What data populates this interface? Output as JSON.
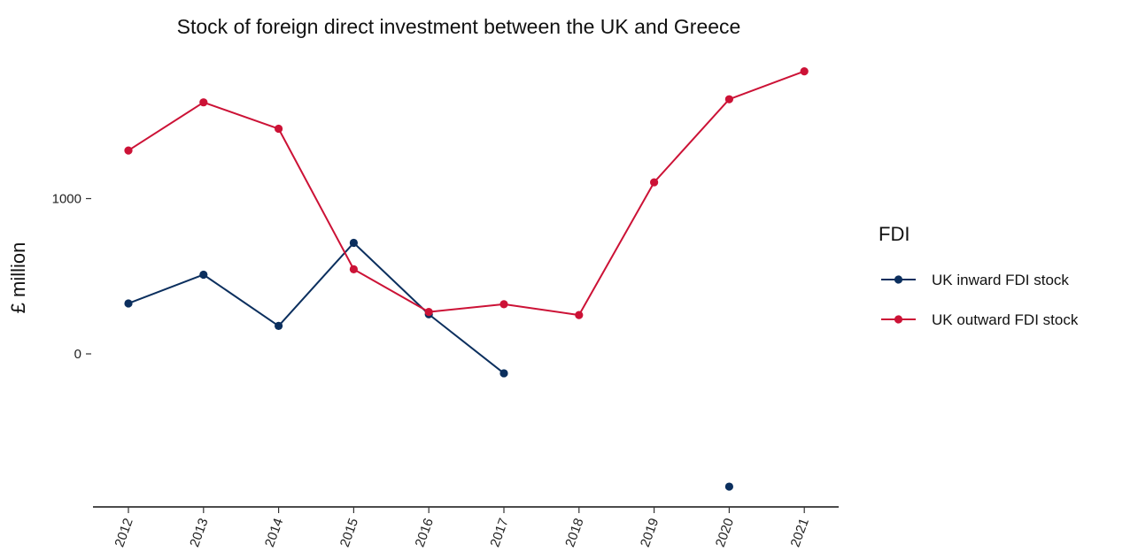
{
  "chart_data": {
    "type": "line",
    "title": "Stock of foreign direct investment between the UK and Greece",
    "xlabel": "",
    "ylabel": "£ million",
    "categories": [
      "2012",
      "2013",
      "2014",
      "2015",
      "2016",
      "2017",
      "2018",
      "2019",
      "2020",
      "2021"
    ],
    "y_ticks": [
      0,
      1000
    ],
    "y_tick_labels": [
      "0",
      "1000"
    ],
    "ylim": [
      -980,
      1850
    ],
    "grid": false,
    "legend": {
      "title": "FDI",
      "position": "right"
    },
    "series": [
      {
        "name": "UK inward FDI stock",
        "color": "#0b2f5e",
        "values": [
          325,
          510,
          180,
          715,
          255,
          -125,
          null,
          null,
          -855,
          null
        ]
      },
      {
        "name": "UK outward FDI stock",
        "color": "#cc1236",
        "values": [
          1310,
          1620,
          1450,
          545,
          270,
          320,
          250,
          1105,
          1640,
          1820
        ]
      }
    ]
  }
}
